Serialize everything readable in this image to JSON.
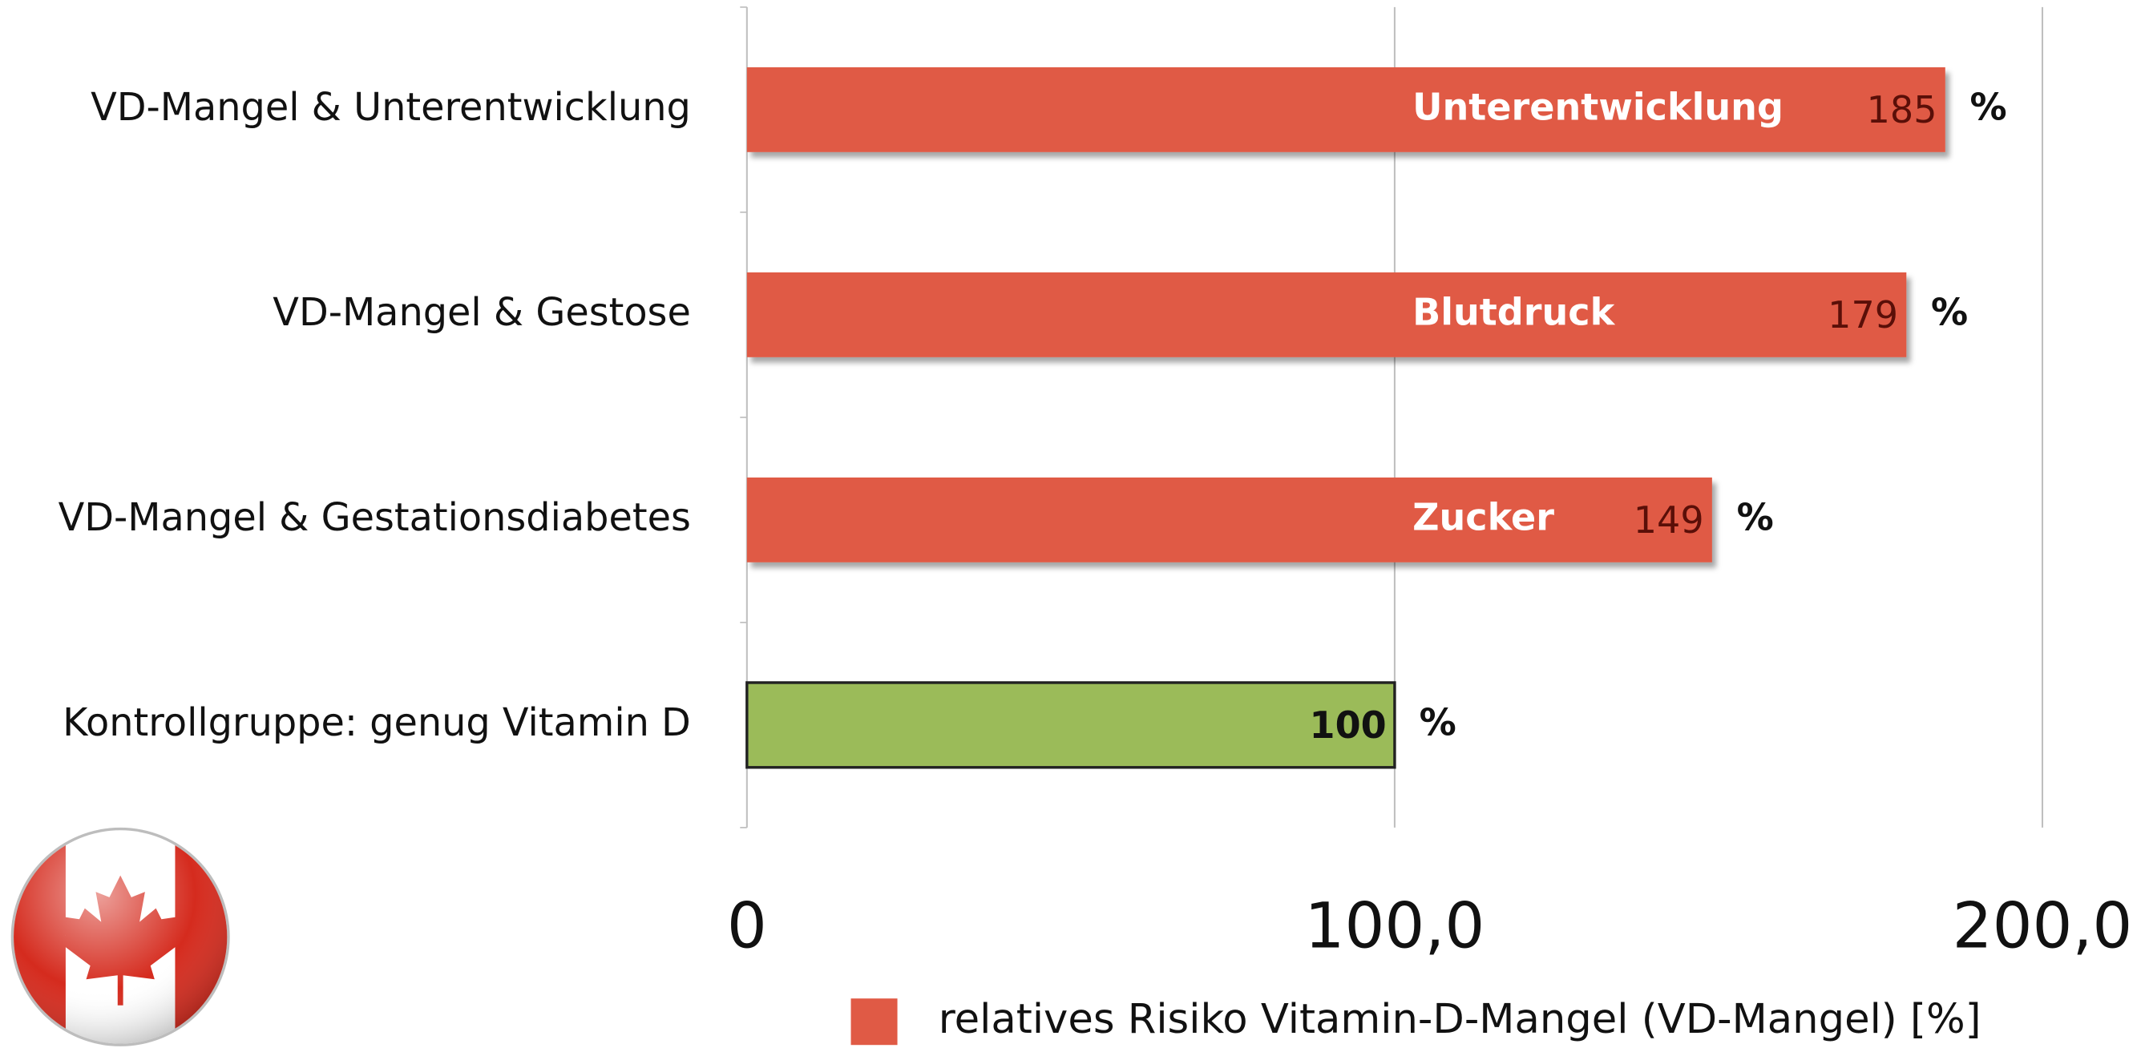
{
  "chart_data": {
    "type": "hbar",
    "categories": [
      "VD-Mangel & Unterentwicklung",
      "VD-Mangel & Gestose",
      "VD-Mangel & Gestationsdiabetes",
      "Kontrollgruppe: genug Vitamin D"
    ],
    "series": [
      {
        "name": "relatives Risiko Vitamin-D-Mangel (VD-Mangel) [%]",
        "color": "#e05a45",
        "values": [
          185,
          179,
          149,
          100
        ]
      }
    ],
    "bar_colors": [
      "#e05a45",
      "#e05a45",
      "#e05a45",
      "#9bbb59"
    ],
    "bar_labels": [
      "Unterentwicklung",
      "Blutdruck",
      "Zucker",
      null
    ],
    "unit_label": "%",
    "xlim": [
      0,
      200
    ],
    "xticks": [
      0,
      {
        "value": 100,
        "label": "100,0"
      },
      {
        "value": 200,
        "label": "200,0"
      }
    ],
    "grid": true,
    "legend": "bottom"
  }
}
